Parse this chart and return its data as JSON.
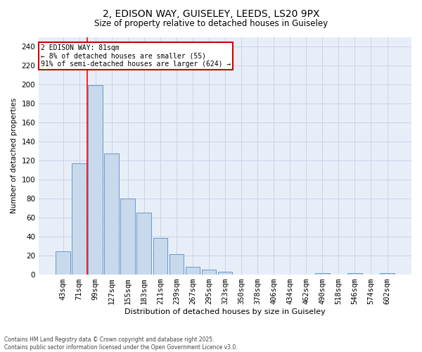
{
  "title_line1": "2, EDISON WAY, GUISELEY, LEEDS, LS20 9PX",
  "title_line2": "Size of property relative to detached houses in Guiseley",
  "xlabel": "Distribution of detached houses by size in Guiseley",
  "ylabel": "Number of detached properties",
  "bar_labels": [
    "43sqm",
    "71sqm",
    "99sqm",
    "127sqm",
    "155sqm",
    "183sqm",
    "211sqm",
    "239sqm",
    "267sqm",
    "295sqm",
    "323sqm",
    "350sqm",
    "378sqm",
    "406sqm",
    "434sqm",
    "462sqm",
    "490sqm",
    "518sqm",
    "546sqm",
    "574sqm",
    "602sqm"
  ],
  "bar_values": [
    24,
    117,
    199,
    127,
    80,
    65,
    38,
    21,
    8,
    5,
    3,
    0,
    0,
    0,
    0,
    0,
    1,
    0,
    1,
    0,
    1
  ],
  "bar_color": "#c8d9ec",
  "bar_edge_color": "#6699cc",
  "grid_color": "#c8d4e8",
  "background_color": "#e8eef8",
  "ylim": [
    0,
    250
  ],
  "yticks": [
    0,
    20,
    40,
    60,
    80,
    100,
    120,
    140,
    160,
    180,
    200,
    220,
    240
  ],
  "red_line_x": 1.5,
  "annotation_title": "2 EDISON WAY: 81sqm",
  "annotation_line1": "← 8% of detached houses are smaller (55)",
  "annotation_line2": "91% of semi-detached houses are larger (624) →",
  "annotation_box_color": "#ffffff",
  "annotation_box_edge_color": "#cc0000",
  "footer_line1": "Contains HM Land Registry data © Crown copyright and database right 2025.",
  "footer_line2": "Contains public sector information licensed under the Open Government Licence v3.0.",
  "figsize": [
    6.0,
    5.0
  ],
  "dpi": 100
}
